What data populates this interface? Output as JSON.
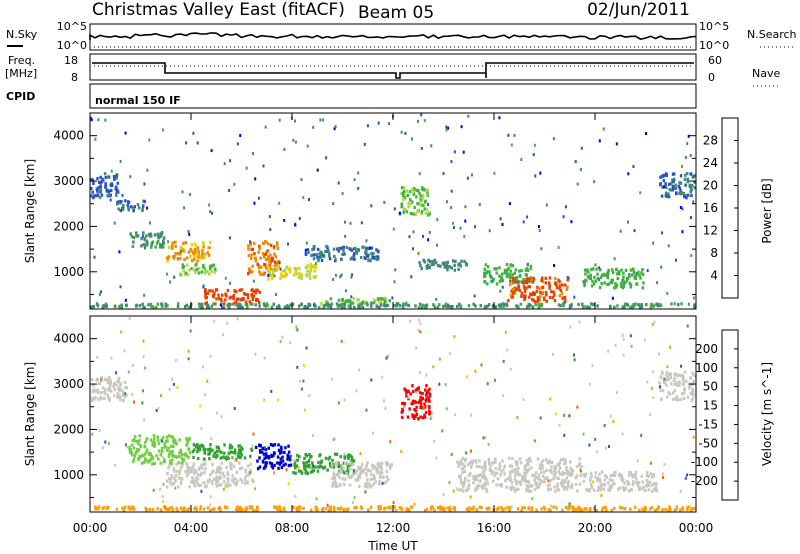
{
  "header": {
    "title": "Christmas Valley East (fitACF)",
    "beam": "Beam 05",
    "date": "02/Jun/2011"
  },
  "strips": {
    "nsky_label": "N.Sky",
    "nsky_ticks": [
      "10^5",
      "10^0"
    ],
    "nsearch_label": "N.Search",
    "freq_label": "Freq.",
    "freq_unit": "[MHz]",
    "freq_ticks": [
      "18",
      "8"
    ],
    "nave_ticks": [
      "60",
      "0"
    ],
    "nave_label": "Nave",
    "cpid_label": "CPID",
    "cpid_value": "normal 150 IF"
  },
  "colors": {
    "power_scale": [
      "#0000ee",
      "#2a4fc8",
      "#3f8a74",
      "#40b040",
      "#a8d848",
      "#f0d000",
      "#f08a00",
      "#e84000",
      "#ff0000"
    ],
    "velocity_scale": [
      "#ff0000",
      "#ff6000",
      "#ffa000",
      "#ffd000",
      "#c8c8c0",
      "#70d040",
      "#30a030",
      "#1f5fbf",
      "#0000d0"
    ],
    "ground_scatter": "#c8c8c0"
  },
  "chart_data": [
    {
      "type": "heatmap",
      "panel": "power",
      "ylabel": "Slant Range [km]",
      "yticks": [
        "4000",
        "3000",
        "2000",
        "1000"
      ],
      "ylim": [
        180,
        4500
      ],
      "xlim": [
        "00:00",
        "24:00"
      ],
      "colorbar_label": "Power [dB]",
      "colorbar_ticks": [
        "28",
        "24",
        "20",
        "16",
        "12",
        "8",
        "4"
      ],
      "colorbar_range": [
        0,
        32
      ],
      "regions": [
        {
          "t0": 0.0,
          "t1": 1.2,
          "r0": 2600,
          "r1": 3200,
          "v": 6
        },
        {
          "t0": 1.0,
          "t1": 2.2,
          "r0": 2300,
          "r1": 2600,
          "v": 7
        },
        {
          "t0": 1.5,
          "t1": 3.0,
          "r0": 1500,
          "r1": 1900,
          "v": 10
        },
        {
          "t0": 3.0,
          "t1": 4.8,
          "r0": 1200,
          "r1": 1700,
          "v": 22
        },
        {
          "t0": 3.5,
          "t1": 5.0,
          "r0": 900,
          "r1": 1200,
          "v": 14
        },
        {
          "t0": 4.5,
          "t1": 6.8,
          "r0": 250,
          "r1": 650,
          "v": 27
        },
        {
          "t0": 6.2,
          "t1": 7.5,
          "r0": 900,
          "r1": 1700,
          "v": 24
        },
        {
          "t0": 7.0,
          "t1": 9.0,
          "r0": 800,
          "r1": 1200,
          "v": 18
        },
        {
          "t0": 8.5,
          "t1": 11.5,
          "r0": 1200,
          "r1": 1600,
          "v": 7
        },
        {
          "t0": 9.0,
          "t1": 12.0,
          "r0": 250,
          "r1": 450,
          "v": 14
        },
        {
          "t0": 12.2,
          "t1": 13.5,
          "r0": 2200,
          "r1": 2900,
          "v": 14
        },
        {
          "t0": 13.0,
          "t1": 15.0,
          "r0": 1000,
          "r1": 1300,
          "v": 9
        },
        {
          "t0": 15.5,
          "t1": 17.5,
          "r0": 700,
          "r1": 1200,
          "v": 12
        },
        {
          "t0": 16.5,
          "t1": 19.0,
          "r0": 300,
          "r1": 900,
          "v": 26
        },
        {
          "t0": 19.5,
          "t1": 22.0,
          "r0": 600,
          "r1": 1100,
          "v": 12
        },
        {
          "t0": 22.5,
          "t1": 24.0,
          "r0": 2600,
          "r1": 3200,
          "v": 7
        },
        {
          "t0": 0.0,
          "t1": 24.0,
          "r0": 180,
          "r1": 330,
          "v": 10
        }
      ]
    },
    {
      "type": "heatmap",
      "panel": "velocity",
      "ylabel": "Slant Range [km]",
      "yticks": [
        "4000",
        "3000",
        "2000",
        "1000"
      ],
      "ylim": [
        180,
        4500
      ],
      "xlabel": "Time UT",
      "xticks": [
        "00:00",
        "04:00",
        "08:00",
        "12:00",
        "16:00",
        "20:00",
        "00:00"
      ],
      "xlim": [
        "00:00",
        "24:00"
      ],
      "colorbar_label": "Velocity [m s^-1]",
      "colorbar_ticks": [
        "200",
        "100",
        "50",
        "15",
        "-15",
        "-50",
        "-100",
        "-200"
      ],
      "colorbar_range": [
        -250,
        250
      ],
      "regions": [
        {
          "t0": 0.0,
          "t1": 1.5,
          "r0": 2600,
          "r1": 3200,
          "v": 0,
          "gs": true
        },
        {
          "t0": 1.5,
          "t1": 4.0,
          "r0": 1200,
          "r1": 1900,
          "v": 40
        },
        {
          "t0": 3.0,
          "t1": 6.5,
          "r0": 700,
          "r1": 1300,
          "v": 0,
          "gs": true
        },
        {
          "t0": 4.0,
          "t1": 6.5,
          "r0": 1300,
          "r1": 1700,
          "v": 60
        },
        {
          "t0": 6.5,
          "t1": 8.0,
          "r0": 1100,
          "r1": 1700,
          "v": 220
        },
        {
          "t0": 8.0,
          "t1": 10.5,
          "r0": 1000,
          "r1": 1500,
          "v": 70
        },
        {
          "t0": 9.5,
          "t1": 12.0,
          "r0": 700,
          "r1": 1300,
          "v": 0,
          "gs": true
        },
        {
          "t0": 12.3,
          "t1": 13.5,
          "r0": 2200,
          "r1": 3000,
          "v": -220
        },
        {
          "t0": 14.5,
          "t1": 19.5,
          "r0": 600,
          "r1": 1400,
          "v": 0,
          "gs": true
        },
        {
          "t0": 19.5,
          "t1": 22.5,
          "r0": 600,
          "r1": 1100,
          "v": 0,
          "gs": true
        },
        {
          "t0": 22.5,
          "t1": 24.0,
          "r0": 2600,
          "r1": 3300,
          "v": 0,
          "gs": true
        },
        {
          "t0": 0.0,
          "t1": 24.0,
          "r0": 180,
          "r1": 330,
          "v": -60
        }
      ]
    }
  ]
}
